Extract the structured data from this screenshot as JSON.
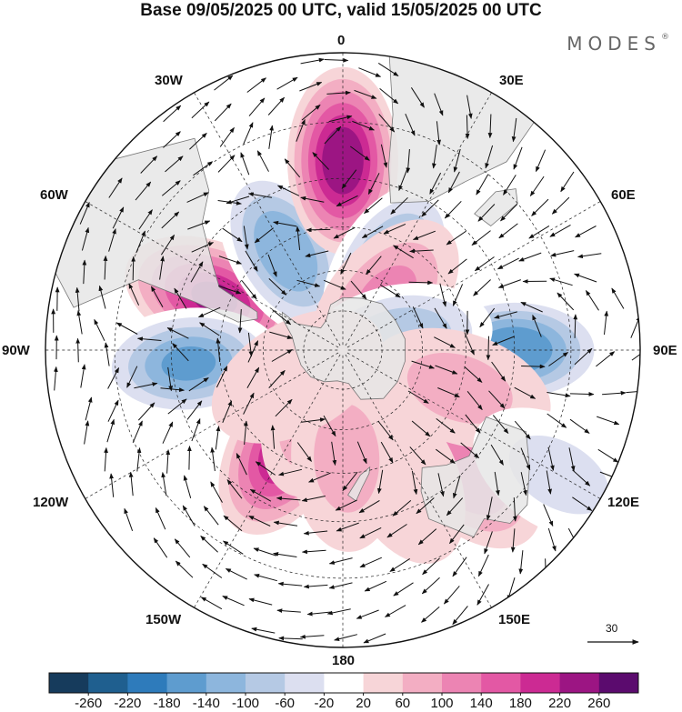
{
  "title": "Base 09/05/2025 00 UTC, valid 15/05/2025 00 UTC",
  "brand": "MODES",
  "brand_mark": "®",
  "longitude_labels": {
    "n0": "0",
    "e30": "30E",
    "e60": "60E",
    "e90": "90E",
    "e120": "120E",
    "e150": "150E",
    "s180": "180",
    "w150": "150W",
    "w120": "120W",
    "w90": "90W",
    "w60": "60W",
    "w30": "30W"
  },
  "reference_vector": {
    "value": "30"
  },
  "colorbar": {
    "ticks": [
      "-260",
      "-220",
      "-180",
      "-140",
      "-100",
      "-60",
      "-20",
      "20",
      "60",
      "100",
      "140",
      "180",
      "220",
      "260"
    ],
    "colors": [
      "#163b5c",
      "#1f5f8f",
      "#2e7bbb",
      "#5e9ccf",
      "#8db6dd",
      "#b5c9e4",
      "#dcdff0",
      "#ffffff",
      "#f7d5d8",
      "#f3aec3",
      "#ec84b3",
      "#e358a4",
      "#cc2a93",
      "#9c1583",
      "#5b0b6e"
    ]
  },
  "map": {
    "projection": "south polar stereographic",
    "land_color": "#e6e6e6",
    "anomalies": [
      {
        "lon": -150,
        "lat": -48,
        "value": 200
      },
      {
        "lon": -68,
        "lat": -40,
        "value": 220
      },
      {
        "lon": -160,
        "lat": -67,
        "value": 100
      },
      {
        "lon": -30,
        "lat": -48,
        "value": -160
      },
      {
        "lon": 0,
        "lat": -25,
        "value": 240
      },
      {
        "lon": 30,
        "lat": -55,
        "value": -180
      },
      {
        "lon": -95,
        "lat": -35,
        "value": -180
      },
      {
        "lon": 135,
        "lat": -30,
        "value": 120
      },
      {
        "lon": 90,
        "lat": -30,
        "value": -200
      },
      {
        "lon": 40,
        "lat": -65,
        "value": 100
      },
      {
        "lon": 80,
        "lat": -68,
        "value": -120
      },
      {
        "lon": 108,
        "lat": -45,
        "value": 60
      },
      {
        "lon": 155,
        "lat": -40,
        "value": 40
      },
      {
        "lon": 178,
        "lat": -50,
        "value": 60
      },
      {
        "lon": -120,
        "lat": -70,
        "value": 40
      },
      {
        "lon": 120,
        "lat": -10,
        "value": -60
      }
    ]
  }
}
